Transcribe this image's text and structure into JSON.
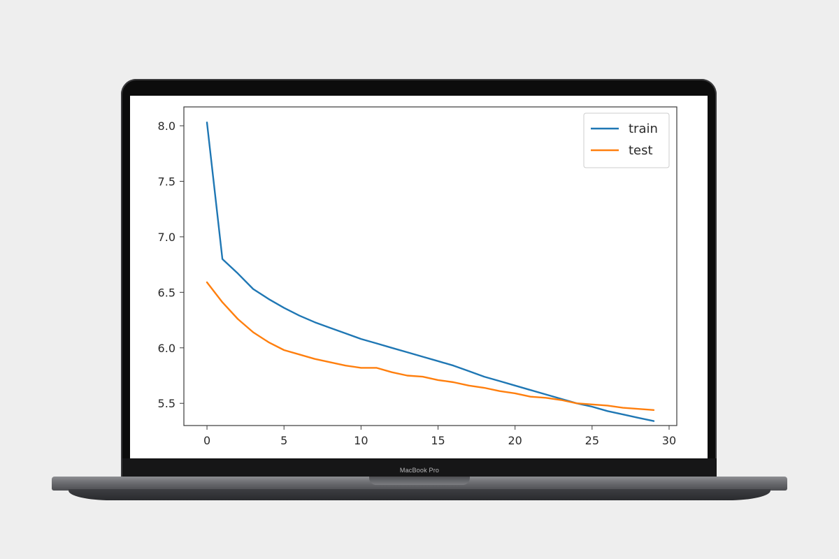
{
  "device": {
    "label": "MacBook Pro"
  },
  "chart_data": {
    "type": "line",
    "title": "",
    "xlabel": "",
    "ylabel": "",
    "xlim": [
      -1.5,
      30.5
    ],
    "ylim": [
      5.3,
      8.17
    ],
    "x_ticks": [
      0,
      5,
      10,
      15,
      20,
      25,
      30
    ],
    "y_ticks": [
      5.5,
      6.0,
      6.5,
      7.0,
      7.5,
      8.0
    ],
    "x_tick_labels": [
      "0",
      "5",
      "10",
      "15",
      "20",
      "25",
      "30"
    ],
    "y_tick_labels": [
      "5.5",
      "6.0",
      "6.5",
      "7.0",
      "7.5",
      "8.0"
    ],
    "grid": false,
    "legend_position": "top-right",
    "series": [
      {
        "name": "train",
        "color": "#1f77b4",
        "x": [
          0,
          1,
          2,
          3,
          4,
          5,
          6,
          7,
          8,
          9,
          10,
          11,
          12,
          13,
          14,
          15,
          16,
          17,
          18,
          19,
          20,
          21,
          22,
          23,
          24,
          25,
          26,
          27,
          28,
          29
        ],
        "values": [
          8.03,
          6.8,
          6.67,
          6.53,
          6.44,
          6.36,
          6.29,
          6.23,
          6.18,
          6.13,
          6.08,
          6.04,
          6.0,
          5.96,
          5.92,
          5.88,
          5.84,
          5.79,
          5.74,
          5.7,
          5.66,
          5.62,
          5.58,
          5.54,
          5.5,
          5.47,
          5.43,
          5.4,
          5.37,
          5.34
        ]
      },
      {
        "name": "test",
        "color": "#ff7f0e",
        "x": [
          0,
          1,
          2,
          3,
          4,
          5,
          6,
          7,
          8,
          9,
          10,
          11,
          12,
          13,
          14,
          15,
          16,
          17,
          18,
          19,
          20,
          21,
          22,
          23,
          24,
          25,
          26,
          27,
          28,
          29
        ],
        "values": [
          6.59,
          6.41,
          6.26,
          6.14,
          6.05,
          5.98,
          5.94,
          5.9,
          5.87,
          5.84,
          5.82,
          5.82,
          5.78,
          5.75,
          5.74,
          5.71,
          5.69,
          5.66,
          5.64,
          5.61,
          5.59,
          5.56,
          5.55,
          5.53,
          5.5,
          5.49,
          5.48,
          5.46,
          5.45,
          5.44
        ]
      }
    ]
  }
}
